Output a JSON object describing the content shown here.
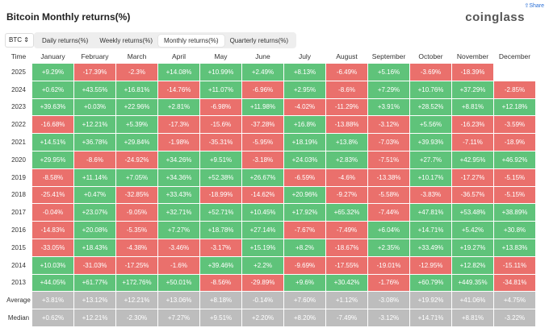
{
  "header": {
    "title": "Bitcoin Monthly returns(%)",
    "logo": "coinglass",
    "share": "Share"
  },
  "controls": {
    "coin": "BTC",
    "tabs": [
      "Daily returns(%)",
      "Weekly returns(%)",
      "Monthly returns(%)",
      "Quarterly returns(%)"
    ],
    "active_tab": 2
  },
  "table": {
    "columns": [
      "Time",
      "January",
      "February",
      "March",
      "April",
      "May",
      "June",
      "July",
      "August",
      "September",
      "October",
      "November",
      "December"
    ],
    "rows": [
      [
        "2025",
        "+9.29%",
        "-17.39%",
        "-2.3%",
        "+14.08%",
        "+10.99%",
        "+2.49%",
        "+8.13%",
        "-6.49%",
        "+5.16%",
        "-3.69%",
        "-18.39%",
        null
      ],
      [
        "2024",
        "+0.62%",
        "+43.55%",
        "+16.81%",
        "-14.76%",
        "+11.07%",
        "-6.96%",
        "+2.95%",
        "-8.6%",
        "+7.29%",
        "+10.76%",
        "+37.29%",
        "-2.85%"
      ],
      [
        "2023",
        "+39.63%",
        "+0.03%",
        "+22.96%",
        "+2.81%",
        "-6.98%",
        "+11.98%",
        "-4.02%",
        "-11.29%",
        "+3.91%",
        "+28.52%",
        "+8.81%",
        "+12.18%"
      ],
      [
        "2022",
        "-16.68%",
        "+12.21%",
        "+5.39%",
        "-17.3%",
        "-15.6%",
        "-37.28%",
        "+16.8%",
        "-13.88%",
        "-3.12%",
        "+5.56%",
        "-16.23%",
        "-3.59%"
      ],
      [
        "2021",
        "+14.51%",
        "+36.78%",
        "+29.84%",
        "-1.98%",
        "-35.31%",
        "-5.95%",
        "+18.19%",
        "+13.8%",
        "-7.03%",
        "+39.93%",
        "-7.11%",
        "-18.9%"
      ],
      [
        "2020",
        "+29.95%",
        "-8.6%",
        "-24.92%",
        "+34.26%",
        "+9.51%",
        "-3.18%",
        "+24.03%",
        "+2.83%",
        "-7.51%",
        "+27.7%",
        "+42.95%",
        "+46.92%"
      ],
      [
        "2019",
        "-8.58%",
        "+11.14%",
        "+7.05%",
        "+34.36%",
        "+52.38%",
        "+26.67%",
        "-6.59%",
        "-4.6%",
        "-13.38%",
        "+10.17%",
        "-17.27%",
        "-5.15%"
      ],
      [
        "2018",
        "-25.41%",
        "+0.47%",
        "-32.85%",
        "+33.43%",
        "-18.99%",
        "-14.62%",
        "+20.96%",
        "-9.27%",
        "-5.58%",
        "-3.83%",
        "-36.57%",
        "-5.15%"
      ],
      [
        "2017",
        "-0.04%",
        "+23.07%",
        "-9.05%",
        "+32.71%",
        "+52.71%",
        "+10.45%",
        "+17.92%",
        "+65.32%",
        "-7.44%",
        "+47.81%",
        "+53.48%",
        "+38.89%"
      ],
      [
        "2016",
        "-14.83%",
        "+20.08%",
        "-5.35%",
        "+7.27%",
        "+18.78%",
        "+27.14%",
        "-7.67%",
        "-7.49%",
        "+6.04%",
        "+14.71%",
        "+5.42%",
        "+30.8%"
      ],
      [
        "2015",
        "-33.05%",
        "+18.43%",
        "-4.38%",
        "-3.46%",
        "-3.17%",
        "+15.19%",
        "+8.2%",
        "-18.67%",
        "+2.35%",
        "+33.49%",
        "+19.27%",
        "+13.83%"
      ],
      [
        "2014",
        "+10.03%",
        "-31.03%",
        "-17.25%",
        "-1.6%",
        "+39.46%",
        "+2.2%",
        "-9.69%",
        "-17.55%",
        "-19.01%",
        "-12.95%",
        "+12.82%",
        "-15.11%"
      ],
      [
        "2013",
        "+44.05%",
        "+61.77%",
        "+172.76%",
        "+50.01%",
        "-8.56%",
        "-29.89%",
        "+9.6%",
        "+30.42%",
        "-1.76%",
        "+60.79%",
        "+449.35%",
        "-34.81%"
      ],
      [
        "Average",
        "+3.81%",
        "+13.12%",
        "+12.21%",
        "+13.06%",
        "+8.18%",
        "-0.14%",
        "+7.60%",
        "+1.12%",
        "-3.08%",
        "+19.92%",
        "+41.06%",
        "+4.75%"
      ],
      [
        "Median",
        "+0.62%",
        "+12.21%",
        "-2.30%",
        "+7.27%",
        "+9.51%",
        "+2.20%",
        "+8.20%",
        "-7.49%",
        "-3.12%",
        "+14.71%",
        "+8.81%",
        "-3.22%"
      ]
    ],
    "summary_rows": [
      13,
      14
    ]
  }
}
